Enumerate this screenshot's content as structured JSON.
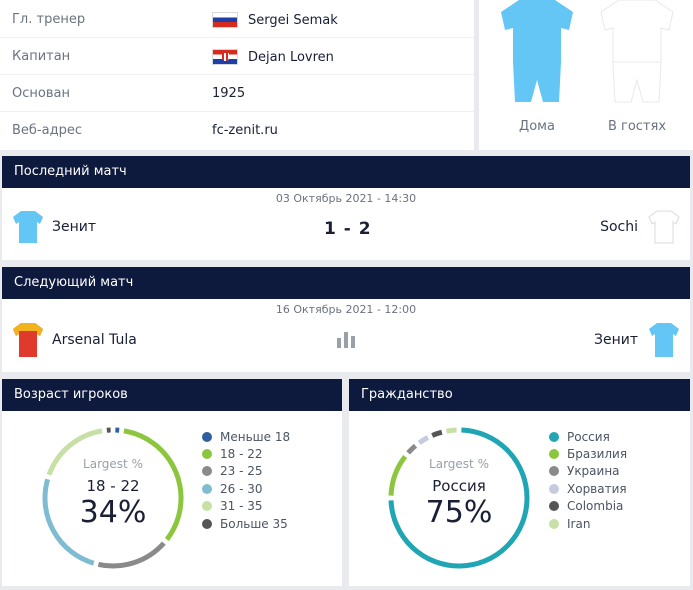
{
  "info": {
    "rows": [
      {
        "label": "Гл. тренер",
        "value": "Sergei Semak",
        "flag": "ru"
      },
      {
        "label": "Капитан",
        "value": "Dejan Lovren",
        "flag": "hr"
      },
      {
        "label": "Основан",
        "value": "1925",
        "flag": ""
      },
      {
        "label": "Веб-адрес",
        "value": "fc-zenit.ru",
        "flag": ""
      }
    ]
  },
  "kits": {
    "home_label": "Дома",
    "away_label": "В гостях",
    "home_color": "#63c6f5",
    "away_color": "#ffffff"
  },
  "last_match": {
    "title": "Последний матч",
    "date": "03 Октябрь 2021 - 14:30",
    "home_team": "Зенит",
    "away_team": "Sochi",
    "score": "1 - 2",
    "home_shirt_color": "#63c6f5",
    "away_shirt_color": "#ffffff"
  },
  "next_match": {
    "title": "Следующий матч",
    "date": "16 Октябрь 2021 - 12:00",
    "home_team": "Arsenal Tula",
    "away_team": "Зенит",
    "stats_icon": "bar-chart-icon",
    "home_shirt_color": "#e03a2c",
    "away_shirt_color": "#63c6f5"
  },
  "age": {
    "title": "Возраст игроков",
    "caption": "Largest %",
    "top_name": "18 - 22",
    "top_pct": "34%",
    "legend": [
      {
        "label": "Меньше 18",
        "color": "#2f5f9e",
        "value": 2
      },
      {
        "label": "18 - 22",
        "color": "#8cc63f",
        "value": 34
      },
      {
        "label": "23 - 25",
        "color": "#8a8a8a",
        "value": 18
      },
      {
        "label": "26 - 30",
        "color": "#7fbcd2",
        "value": 26
      },
      {
        "label": "31 - 35",
        "color": "#c7e0a6",
        "value": 18
      },
      {
        "label": "Больше 35",
        "color": "#555555",
        "value": 2
      }
    ]
  },
  "citizenship": {
    "title": "Гражданство",
    "caption": "Largest %",
    "top_name": "Россия",
    "top_pct": "75%",
    "legend": [
      {
        "label": "Россия",
        "color": "#1fa5b3",
        "value": 75
      },
      {
        "label": "Бразилия",
        "color": "#8cc63f",
        "value": 11
      },
      {
        "label": "Украина",
        "color": "#8a8a8a",
        "value": 3.5
      },
      {
        "label": "Хорватия",
        "color": "#c6cbe0",
        "value": 3.5
      },
      {
        "label": "Colombia",
        "color": "#555555",
        "value": 3.5
      },
      {
        "label": "Iran",
        "color": "#c7e0a6",
        "value": 3.5
      }
    ]
  }
}
